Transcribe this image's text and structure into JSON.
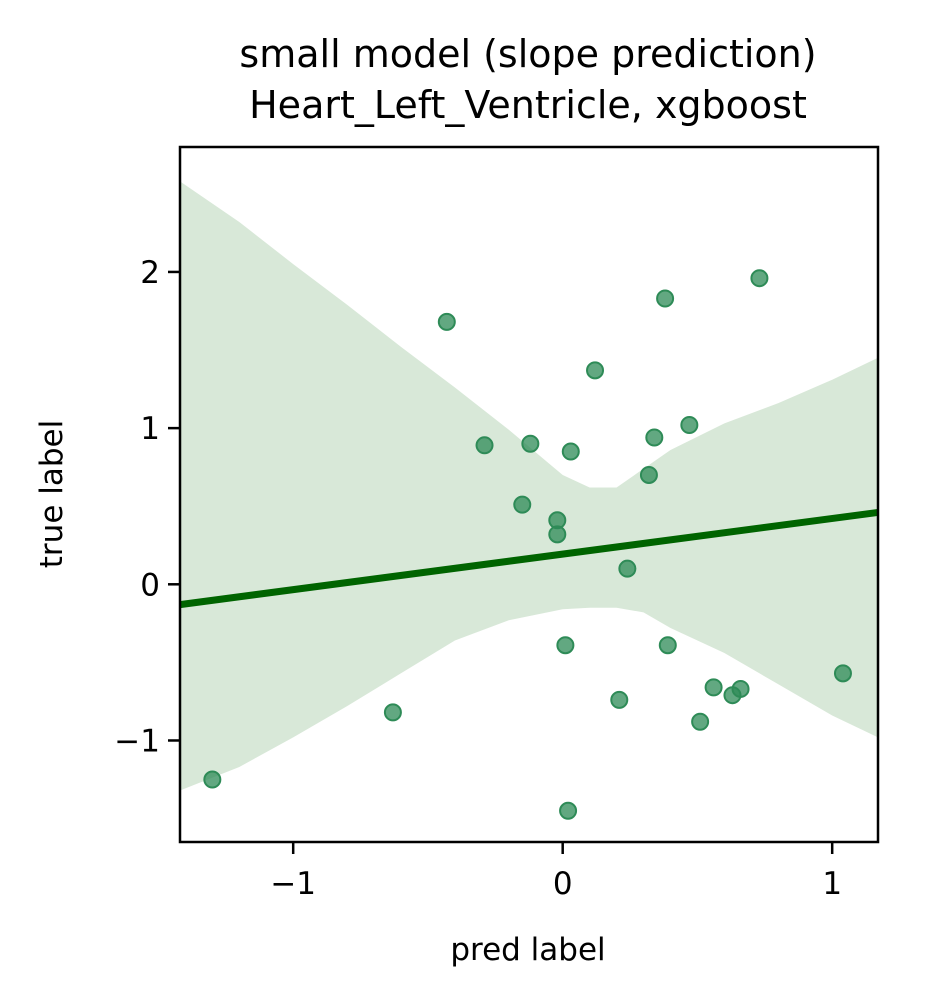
{
  "chart_data": {
    "type": "scatter",
    "title": "small model (slope prediction)",
    "subtitle": "Heart_Left_Ventricle, xgboost",
    "xlabel": "pred label",
    "ylabel": "true label",
    "xlim": [
      -1.42,
      1.17
    ],
    "ylim": [
      -1.65,
      2.8
    ],
    "x_ticks": [
      -1,
      0,
      1
    ],
    "y_ticks": [
      -1,
      0,
      1,
      2
    ],
    "x_tick_labels": [
      "−1",
      "0",
      "1"
    ],
    "y_tick_labels": [
      "−1",
      "0",
      "1",
      "2"
    ],
    "grid": false,
    "colors": {
      "points": "#2e8b57",
      "regression_line": "#006400",
      "confidence_band": "#d8e8d8"
    },
    "points": [
      {
        "x": -1.3,
        "y": -1.25
      },
      {
        "x": -0.63,
        "y": -0.82
      },
      {
        "x": -0.43,
        "y": 1.68
      },
      {
        "x": -0.29,
        "y": 0.89
      },
      {
        "x": -0.12,
        "y": 0.9
      },
      {
        "x": -0.15,
        "y": 0.51
      },
      {
        "x": -0.02,
        "y": 0.41
      },
      {
        "x": -0.02,
        "y": 0.32
      },
      {
        "x": 0.01,
        "y": -0.39
      },
      {
        "x": 0.03,
        "y": 0.85
      },
      {
        "x": 0.02,
        "y": -1.45
      },
      {
        "x": 0.12,
        "y": 1.37
      },
      {
        "x": 0.21,
        "y": -0.74
      },
      {
        "x": 0.24,
        "y": 0.1
      },
      {
        "x": 0.32,
        "y": 0.7
      },
      {
        "x": 0.34,
        "y": 0.94
      },
      {
        "x": 0.38,
        "y": 1.83
      },
      {
        "x": 0.39,
        "y": -0.39
      },
      {
        "x": 0.47,
        "y": 1.02
      },
      {
        "x": 0.51,
        "y": -0.88
      },
      {
        "x": 0.56,
        "y": -0.66
      },
      {
        "x": 0.63,
        "y": -0.71
      },
      {
        "x": 0.66,
        "y": -0.67
      },
      {
        "x": 0.73,
        "y": 1.96
      },
      {
        "x": 1.04,
        "y": -0.57
      }
    ],
    "regression": {
      "x": [
        -1.42,
        1.17
      ],
      "y": [
        -0.13,
        0.46
      ]
    },
    "confidence_band": {
      "x": [
        -1.42,
        -1.2,
        -1.0,
        -0.8,
        -0.6,
        -0.4,
        -0.2,
        0.0,
        0.1,
        0.2,
        0.3,
        0.4,
        0.6,
        0.8,
        1.0,
        1.17
      ],
      "upper": [
        2.58,
        2.32,
        2.05,
        1.79,
        1.52,
        1.26,
        0.99,
        0.7,
        0.62,
        0.62,
        0.74,
        0.86,
        1.03,
        1.16,
        1.31,
        1.45
      ],
      "lower": [
        -1.32,
        -1.17,
        -0.98,
        -0.78,
        -0.57,
        -0.36,
        -0.23,
        -0.16,
        -0.15,
        -0.15,
        -0.18,
        -0.28,
        -0.44,
        -0.64,
        -0.84,
        -0.98
      ]
    }
  }
}
